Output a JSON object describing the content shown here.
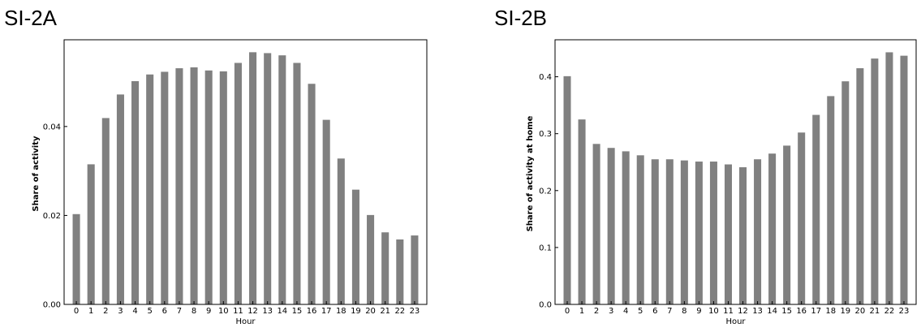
{
  "chart_data": [
    {
      "id": "SI-2A",
      "type": "bar",
      "title": "SI-2A",
      "xlabel": "Hour",
      "ylabel": "Share of activity",
      "categories": [
        "0",
        "1",
        "2",
        "3",
        "4",
        "5",
        "6",
        "7",
        "8",
        "9",
        "10",
        "11",
        "12",
        "13",
        "14",
        "15",
        "16",
        "17",
        "18",
        "19",
        "20",
        "21",
        "22",
        "23"
      ],
      "values": [
        0.0203,
        0.0315,
        0.0419,
        0.0472,
        0.0502,
        0.0517,
        0.0523,
        0.0531,
        0.0533,
        0.0526,
        0.0524,
        0.0543,
        0.0567,
        0.0565,
        0.056,
        0.0543,
        0.0496,
        0.0415,
        0.0328,
        0.0258,
        0.0201,
        0.0162,
        0.0146,
        0.0155
      ],
      "yticks": [
        0.0,
        0.02,
        0.04
      ],
      "ytick_labels": [
        "0.00",
        "0.02",
        "0.04"
      ],
      "ylim": [
        0,
        0.0595
      ],
      "bar_color": "#808080",
      "grid": false,
      "legend": "none"
    },
    {
      "id": "SI-2B",
      "type": "bar",
      "title": "SI-2B",
      "xlabel": "Hour",
      "ylabel": "Share of activity at home",
      "categories": [
        "0",
        "1",
        "2",
        "3",
        "4",
        "5",
        "6",
        "7",
        "8",
        "9",
        "10",
        "11",
        "12",
        "13",
        "14",
        "15",
        "16",
        "17",
        "18",
        "19",
        "20",
        "21",
        "22",
        "23"
      ],
      "values": [
        0.401,
        0.325,
        0.282,
        0.275,
        0.269,
        0.262,
        0.255,
        0.255,
        0.253,
        0.251,
        0.251,
        0.246,
        0.241,
        0.255,
        0.265,
        0.279,
        0.302,
        0.333,
        0.366,
        0.392,
        0.415,
        0.432,
        0.443,
        0.437
      ],
      "yticks": [
        0.0,
        0.1,
        0.2,
        0.3,
        0.4
      ],
      "ytick_labels": [
        "0.0",
        "0.1",
        "0.2",
        "0.3",
        "0.4"
      ],
      "ylim": [
        0,
        0.465
      ],
      "bar_color": "#808080",
      "grid": false,
      "legend": "none"
    }
  ]
}
